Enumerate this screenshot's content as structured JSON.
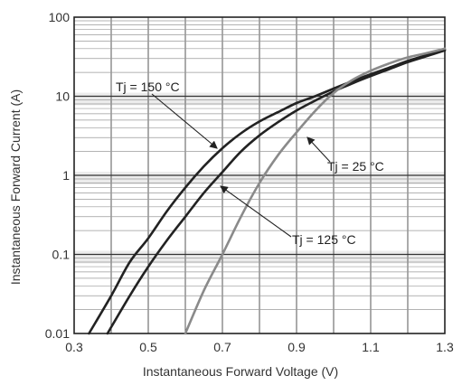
{
  "chart_data": {
    "type": "line",
    "xlabel": "Instantaneous Forward Voltage (V)",
    "ylabel": "Instantaneous Forward Current (A)",
    "xlim": [
      0.3,
      1.3
    ],
    "ylim": [
      0.01,
      100
    ],
    "y_scale": "log",
    "grid": true,
    "x_ticks": [
      "0.3",
      "0.5",
      "0.7",
      "0.9",
      "1.1",
      "1.3"
    ],
    "y_ticks": [
      "0.01",
      "0.1",
      "1",
      "10",
      "100"
    ],
    "series": [
      {
        "name": "Tj = 150 °C",
        "color": "#222222",
        "x": [
          0.34,
          0.4,
          0.45,
          0.5,
          0.55,
          0.6,
          0.65,
          0.7,
          0.75,
          0.8,
          0.85,
          0.9,
          0.95,
          1.0,
          1.05,
          1.1,
          1.15,
          1.2,
          1.25,
          1.3
        ],
        "y": [
          0.01,
          0.03,
          0.08,
          0.16,
          0.35,
          0.7,
          1.3,
          2.2,
          3.4,
          4.8,
          6.3,
          8.2,
          10.0,
          12.5,
          15.5,
          19.0,
          23.0,
          28.0,
          33.0,
          39.0
        ]
      },
      {
        "name": "Tj = 125 °C",
        "color": "#222222",
        "x": [
          0.39,
          0.45,
          0.5,
          0.55,
          0.6,
          0.65,
          0.7,
          0.75,
          0.8,
          0.85,
          0.9,
          0.95,
          1.0,
          1.05,
          1.1,
          1.15,
          1.2,
          1.25,
          1.3
        ],
        "y": [
          0.01,
          0.03,
          0.07,
          0.15,
          0.3,
          0.6,
          1.1,
          2.0,
          3.2,
          4.7,
          6.6,
          8.8,
          11.5,
          14.5,
          18.0,
          22.0,
          27.0,
          32.0,
          38.0
        ]
      },
      {
        "name": "Tj = 25 °C",
        "color": "#8a8a8a",
        "x": [
          0.6,
          0.65,
          0.7,
          0.75,
          0.8,
          0.85,
          0.9,
          0.95,
          1.0,
          1.05,
          1.1,
          1.15,
          1.2,
          1.25,
          1.3
        ],
        "y": [
          0.01,
          0.035,
          0.1,
          0.3,
          0.8,
          1.8,
          3.5,
          6.5,
          11.0,
          16.0,
          21.0,
          26.0,
          31.0,
          35.0,
          40.0
        ]
      }
    ],
    "annotations": [
      {
        "text": "Tj = 150 °C",
        "points_to": "Tj = 150 °C"
      },
      {
        "text": "Tj = 25 °C",
        "points_to": "Tj = 25 °C"
      },
      {
        "text": "Tj = 125 °C",
        "points_to": "Tj = 125 °C"
      }
    ]
  }
}
